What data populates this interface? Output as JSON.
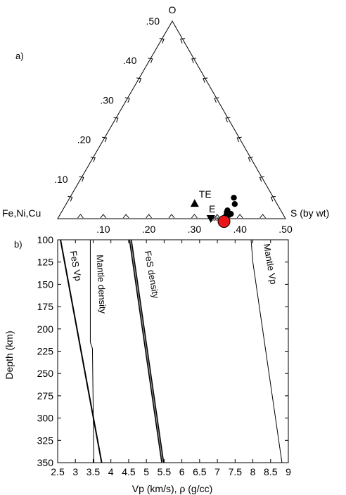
{
  "chart_data": [
    {
      "type": "scatter",
      "subtype": "ternary",
      "panel_label": "a)",
      "vertices": {
        "top": "O",
        "left": "Fe,Ni,Cu",
        "right": "S (by wt)"
      },
      "top_axis_ticks": [
        {
          "value": 0.5,
          "label": ".50"
        },
        {
          "value": 0.4,
          "label": ".40"
        },
        {
          "value": 0.3,
          "label": ".30"
        },
        {
          "value": 0.2,
          "label": ".20"
        },
        {
          "value": 0.1,
          "label": ".10"
        }
      ],
      "bottom_axis_ticks": [
        {
          "value": 0.1,
          "label": ".10"
        },
        {
          "value": 0.2,
          "label": ".20"
        },
        {
          "value": 0.3,
          "label": ".30"
        },
        {
          "value": 0.4,
          "label": ".40"
        },
        {
          "value": 0.5,
          "label": ".50"
        }
      ],
      "samples": [
        {
          "s": 0.36,
          "o": 0.053
        },
        {
          "s": 0.37,
          "o": 0.037
        },
        {
          "s": 0.362,
          "o": 0.021
        },
        {
          "s": 0.363,
          "o": 0.016
        },
        {
          "s": 0.365,
          "o": 0.012
        },
        {
          "s": 0.368,
          "o": 0.009
        },
        {
          "s": 0.371,
          "o": 0.009
        },
        {
          "s": 0.374,
          "o": 0.012
        },
        {
          "s": 0.366,
          "o": 0.006
        }
      ],
      "highlight": {
        "s": 0.365,
        "o": 0.0,
        "color": "#e8161b"
      },
      "annotations": [
        {
          "label": "TE",
          "marker": "triangle-up",
          "s": 0.281,
          "o": 0.039
        },
        {
          "label": "E",
          "marker": "triangle-down",
          "s": 0.336,
          "o": 0.0
        }
      ],
      "cross_markers": {
        "s_from": 0.34,
        "s_to": 0.362,
        "o": 0.0,
        "count": 6
      }
    },
    {
      "type": "line",
      "panel_label": "b)",
      "xlabel": "Vp (km/s), ρ (g/cc)",
      "ylabel": "Depth (km)",
      "xlim": [
        2.5,
        9
      ],
      "ylim": [
        350,
        100
      ],
      "x_ticks": [
        {
          "value": 2.5,
          "label": "2.5"
        },
        {
          "value": 3,
          "label": "3"
        },
        {
          "value": 3.5,
          "label": "3.5"
        },
        {
          "value": 4,
          "label": "4"
        },
        {
          "value": 4.5,
          "label": "4.5"
        },
        {
          "value": 5,
          "label": "5"
        },
        {
          "value": 5.5,
          "label": "5.5"
        },
        {
          "value": 6,
          "label": "6"
        },
        {
          "value": 6.5,
          "label": "6.5"
        },
        {
          "value": 7,
          "label": "7"
        },
        {
          "value": 7.5,
          "label": "7.5"
        },
        {
          "value": 8,
          "label": "8"
        },
        {
          "value": 8.5,
          "label": "8.5"
        },
        {
          "value": 9,
          "label": "9"
        }
      ],
      "y_ticks": [
        {
          "value": 100,
          "label": "100"
        },
        {
          "value": 125,
          "label": "125"
        },
        {
          "value": 150,
          "label": "150"
        },
        {
          "value": 175,
          "label": "175"
        },
        {
          "value": 200,
          "label": "200"
        },
        {
          "value": 225,
          "label": "225"
        },
        {
          "value": 250,
          "label": "250"
        },
        {
          "value": 275,
          "label": "275"
        },
        {
          "value": 300,
          "label": "300"
        },
        {
          "value": 325,
          "label": "325"
        },
        {
          "value": 350,
          "label": "350"
        }
      ],
      "series": [
        {
          "name": "FeS Vp",
          "style": "thick",
          "points": [
            [
              2.58,
              100
            ],
            [
              3.74,
              350
            ]
          ],
          "label_at": [
            2.85,
            113
          ],
          "label_angle": 80
        },
        {
          "name": "Mantle density",
          "style": "thin",
          "points": [
            [
              3.42,
              100
            ],
            [
              3.42,
              215
            ],
            [
              3.48,
              222
            ],
            [
              3.52,
              350
            ]
          ],
          "label_at": [
            3.6,
            117
          ],
          "label_angle": 87
        },
        {
          "name": "FeS density",
          "style": "double",
          "points": [
            [
              4.55,
              100
            ],
            [
              5.46,
              350
            ]
          ],
          "label_at": [
            4.95,
            113
          ],
          "label_angle": 80
        },
        {
          "name": "Mantle Vp",
          "style": "thin",
          "points": [
            [
              7.95,
              100
            ],
            [
              8.0,
              125
            ],
            [
              8.82,
              350
            ]
          ],
          "label_at": [
            8.3,
            105
          ],
          "label_angle": 80
        }
      ]
    }
  ]
}
